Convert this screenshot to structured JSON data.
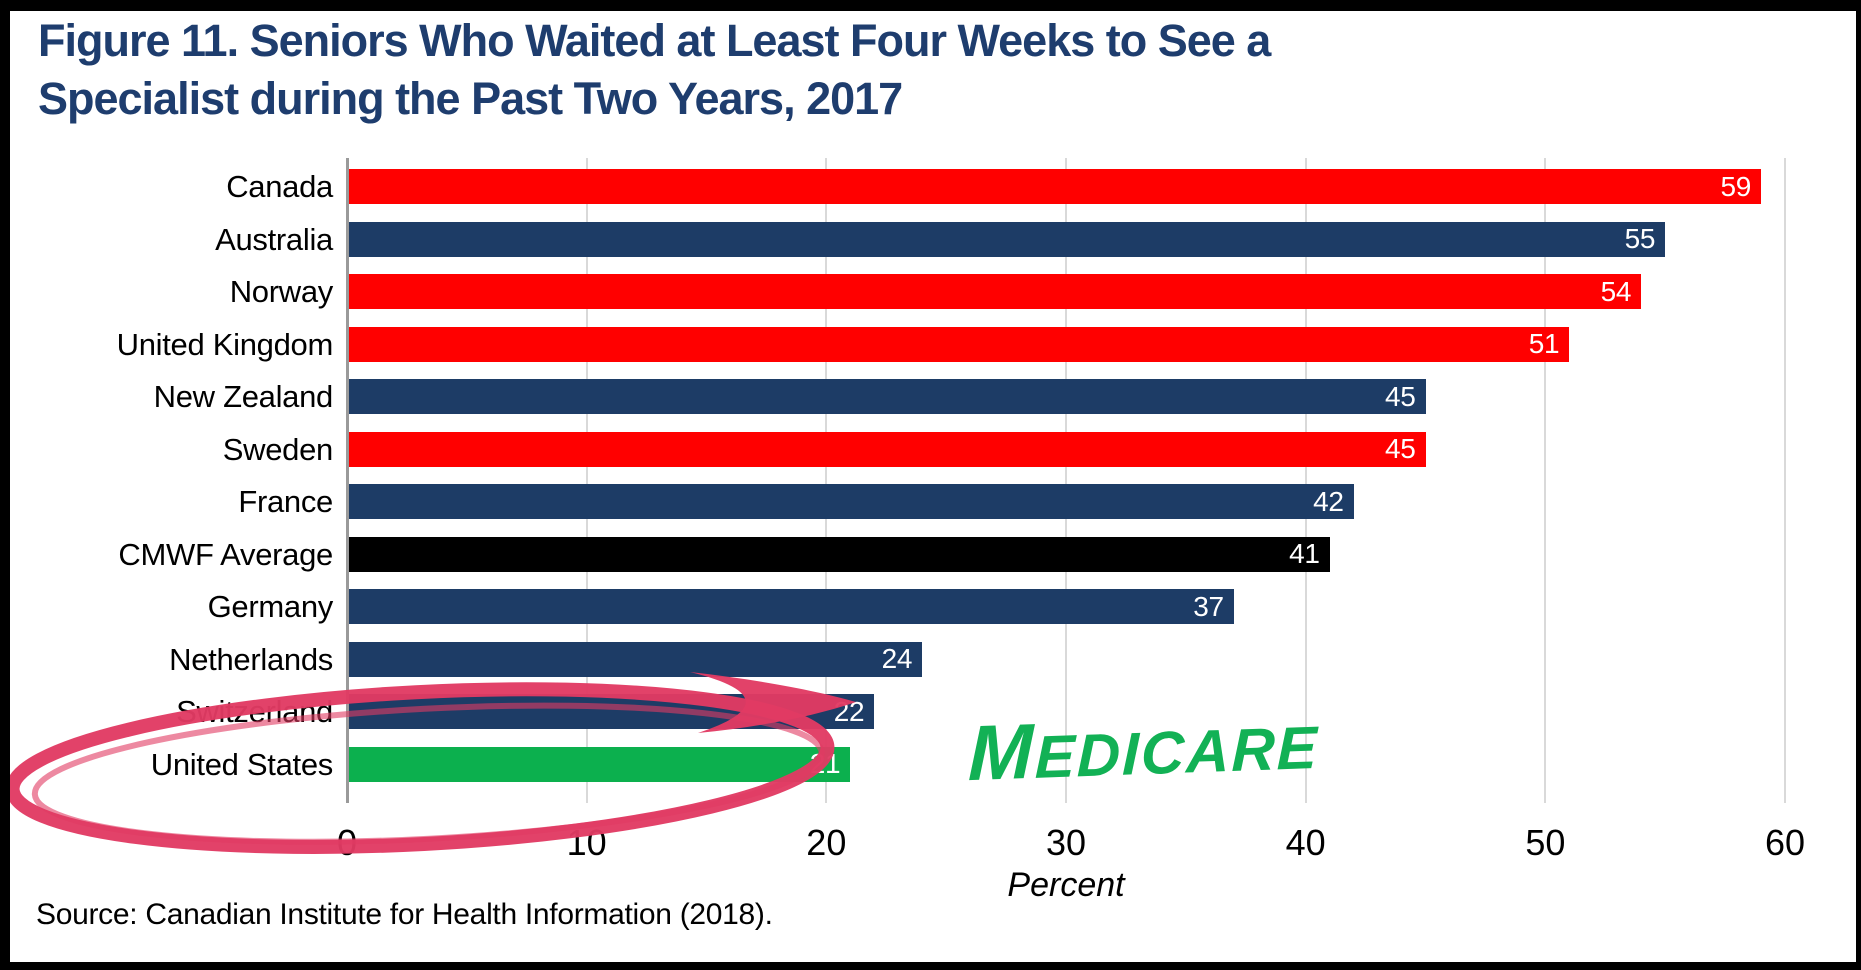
{
  "figure": {
    "title_line1": "Figure 11. Seniors Who Waited at Least Four Weeks to See a",
    "title_line2": "Specialist during the Past Two Years, 2017",
    "source": "Source: Canadian Institute for Health Information (2018)."
  },
  "chart_data": {
    "type": "bar",
    "orientation": "horizontal",
    "title": "Figure 11. Seniors Who Waited at Least Four Weeks to See a Specialist during the Past Two Years, 2017",
    "xlabel": "Percent",
    "xlim": [
      0,
      60
    ],
    "x_ticks": [
      0,
      10,
      20,
      30,
      40,
      50,
      60
    ],
    "grid": true,
    "value_labels": "inside-end-white",
    "bars": [
      {
        "label": "Canada",
        "value": 59,
        "color": "#ff0000"
      },
      {
        "label": "Australia",
        "value": 55,
        "color": "#1d3c66"
      },
      {
        "label": "Norway",
        "value": 54,
        "color": "#ff0000"
      },
      {
        "label": "United Kingdom",
        "value": 51,
        "color": "#ff0000"
      },
      {
        "label": "New Zealand",
        "value": 45,
        "color": "#1d3c66"
      },
      {
        "label": "Sweden",
        "value": 45,
        "color": "#ff0000"
      },
      {
        "label": "France",
        "value": 42,
        "color": "#1d3c66"
      },
      {
        "label": "CMWF Average",
        "value": 41,
        "color": "#000000"
      },
      {
        "label": "Germany",
        "value": 37,
        "color": "#1d3c66"
      },
      {
        "label": "Netherlands",
        "value": 24,
        "color": "#1d3c66"
      },
      {
        "label": "Switzerland",
        "value": 22,
        "color": "#1d3c66"
      },
      {
        "label": "United States",
        "value": 21,
        "color": "#0cb04e"
      }
    ]
  },
  "annotations": {
    "medicare_label": "Medicare",
    "medicare_color": "#12b155",
    "circle_color": "#e13a63"
  },
  "colors": {
    "title": "#1e3d6e",
    "gridline": "#d9d9d9",
    "axis_line": "#9a9a9a",
    "background": "#ffffff",
    "border": "#000000"
  }
}
